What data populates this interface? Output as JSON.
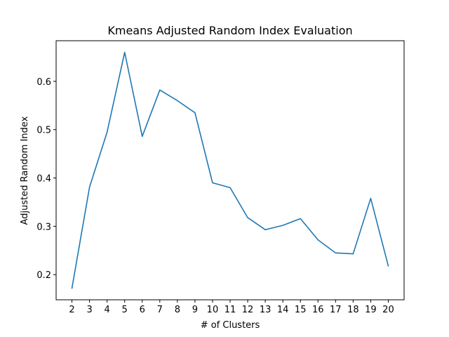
{
  "chart_data": {
    "type": "line",
    "title": "Kmeans Adjusted Random Index Evaluation",
    "xlabel": "# of Clusters",
    "ylabel": "Adjusted Random Index",
    "x": [
      2,
      3,
      4,
      5,
      6,
      7,
      8,
      9,
      10,
      11,
      12,
      13,
      14,
      15,
      16,
      17,
      18,
      19,
      20
    ],
    "x_tick_labels": [
      "2",
      "3",
      "4",
      "5",
      "6",
      "7",
      "8",
      "9",
      "10",
      "11",
      "12",
      "13",
      "14",
      "15",
      "16",
      "17",
      "18",
      "19",
      "20"
    ],
    "y": [
      0.172,
      0.381,
      0.495,
      0.66,
      0.486,
      0.582,
      0.56,
      0.535,
      0.39,
      0.38,
      0.318,
      0.293,
      0.302,
      0.316,
      0.272,
      0.245,
      0.243,
      0.358,
      0.218
    ],
    "y_ticks": [
      0.2,
      0.3,
      0.4,
      0.5,
      0.6
    ],
    "y_tick_labels": [
      "0.2",
      "0.3",
      "0.4",
      "0.5",
      "0.6"
    ],
    "xlim": [
      1.1,
      20.9
    ],
    "ylim": [
      0.148,
      0.684
    ],
    "grid": false,
    "line_color": "#1f77b4"
  }
}
